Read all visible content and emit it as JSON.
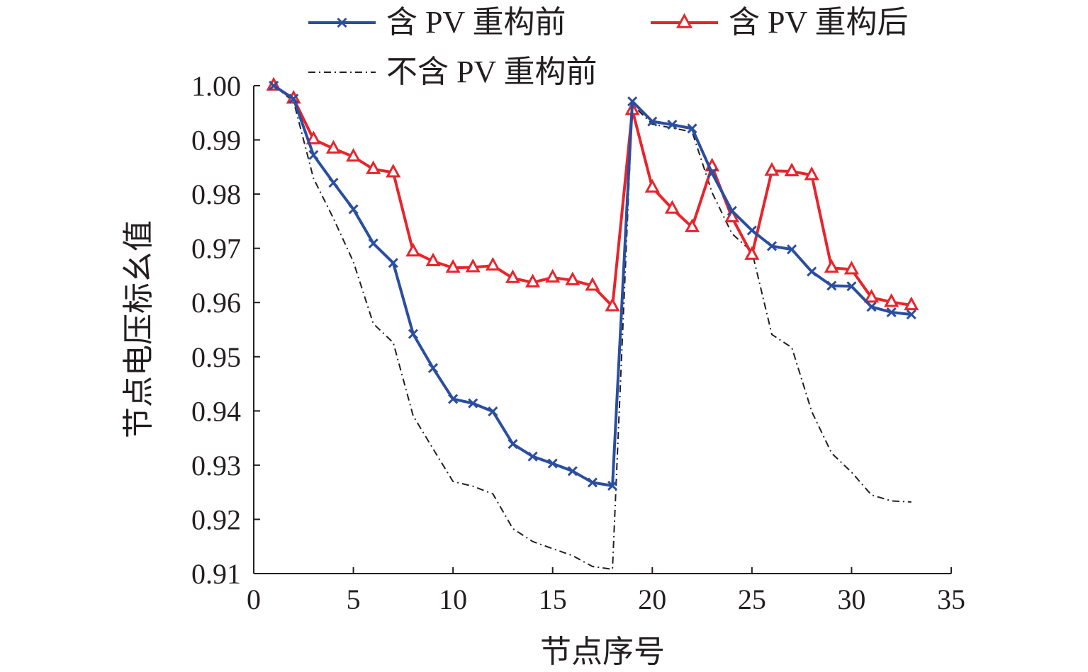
{
  "chart_data": {
    "type": "line",
    "xlabel": "节点序号",
    "ylabel": "节点电压标幺值",
    "xlim": [
      0,
      35
    ],
    "ylim": [
      0.91,
      1.0
    ],
    "xticks": [
      "0",
      "5",
      "10",
      "15",
      "20",
      "25",
      "30",
      "35"
    ],
    "yticks": [
      "0.91",
      "0.92",
      "0.93",
      "0.94",
      "0.95",
      "0.96",
      "0.97",
      "0.98",
      "0.99",
      "1.00"
    ],
    "grid": false,
    "legend_position": "top",
    "series": [
      {
        "name": "含 PV 重构前",
        "color": "#2a4ea0",
        "marker": "x",
        "style": "solid",
        "x": [
          1,
          2,
          3,
          4,
          5,
          6,
          7,
          8,
          9,
          10,
          11,
          12,
          13,
          14,
          15,
          16,
          17,
          18,
          19,
          20,
          21,
          22,
          23,
          24,
          25,
          26,
          27,
          28,
          29,
          30,
          31,
          32,
          33
        ],
        "y": [
          1.0,
          0.9976,
          0.9872,
          0.9821,
          0.9772,
          0.9709,
          0.9673,
          0.9542,
          0.9479,
          0.9422,
          0.9414,
          0.9399,
          0.9339,
          0.9316,
          0.9303,
          0.9289,
          0.9268,
          0.9262,
          0.9971,
          0.9934,
          0.9928,
          0.9921,
          0.9839,
          0.9769,
          0.9733,
          0.9704,
          0.9698,
          0.9657,
          0.9631,
          0.963,
          0.9592,
          0.9582,
          0.9578
        ]
      },
      {
        "name": "含 PV 重构后",
        "color": "#e8242b",
        "marker": "triangle",
        "style": "solid",
        "x": [
          1,
          2,
          3,
          4,
          5,
          6,
          7,
          8,
          9,
          10,
          11,
          12,
          13,
          14,
          15,
          16,
          17,
          18,
          19,
          20,
          21,
          22,
          23,
          24,
          25,
          26,
          27,
          28,
          29,
          30,
          31,
          32,
          33
        ],
        "y": [
          1.0,
          0.9976,
          0.9901,
          0.9884,
          0.9869,
          0.9846,
          0.984,
          0.9694,
          0.9676,
          0.9664,
          0.9665,
          0.9668,
          0.9645,
          0.9637,
          0.9646,
          0.9641,
          0.9631,
          0.9593,
          0.9955,
          0.9812,
          0.9773,
          0.9739,
          0.9851,
          0.9757,
          0.9688,
          0.9843,
          0.9842,
          0.9835,
          0.9664,
          0.9661,
          0.9609,
          0.9601,
          0.9595
        ]
      },
      {
        "name": "不含 PV 重构前",
        "color": "#231f20",
        "marker": "none",
        "style": "dashdot",
        "x": [
          1,
          2,
          3,
          4,
          5,
          6,
          7,
          8,
          9,
          10,
          11,
          12,
          13,
          14,
          15,
          16,
          17,
          18,
          19,
          20,
          21,
          22,
          23,
          24,
          25,
          26,
          27,
          28,
          29,
          30,
          31,
          32,
          33
        ],
        "y": [
          1.0,
          0.9971,
          0.9829,
          0.9755,
          0.9675,
          0.9561,
          0.9526,
          0.9391,
          0.933,
          0.927,
          0.9261,
          0.9247,
          0.9183,
          0.9159,
          0.9146,
          0.9133,
          0.9113,
          0.9108,
          0.9965,
          0.9929,
          0.9922,
          0.9915,
          0.9803,
          0.9727,
          0.9694,
          0.9541,
          0.9517,
          0.9399,
          0.9322,
          0.9287,
          0.9245,
          0.9234,
          0.9232
        ]
      }
    ]
  }
}
